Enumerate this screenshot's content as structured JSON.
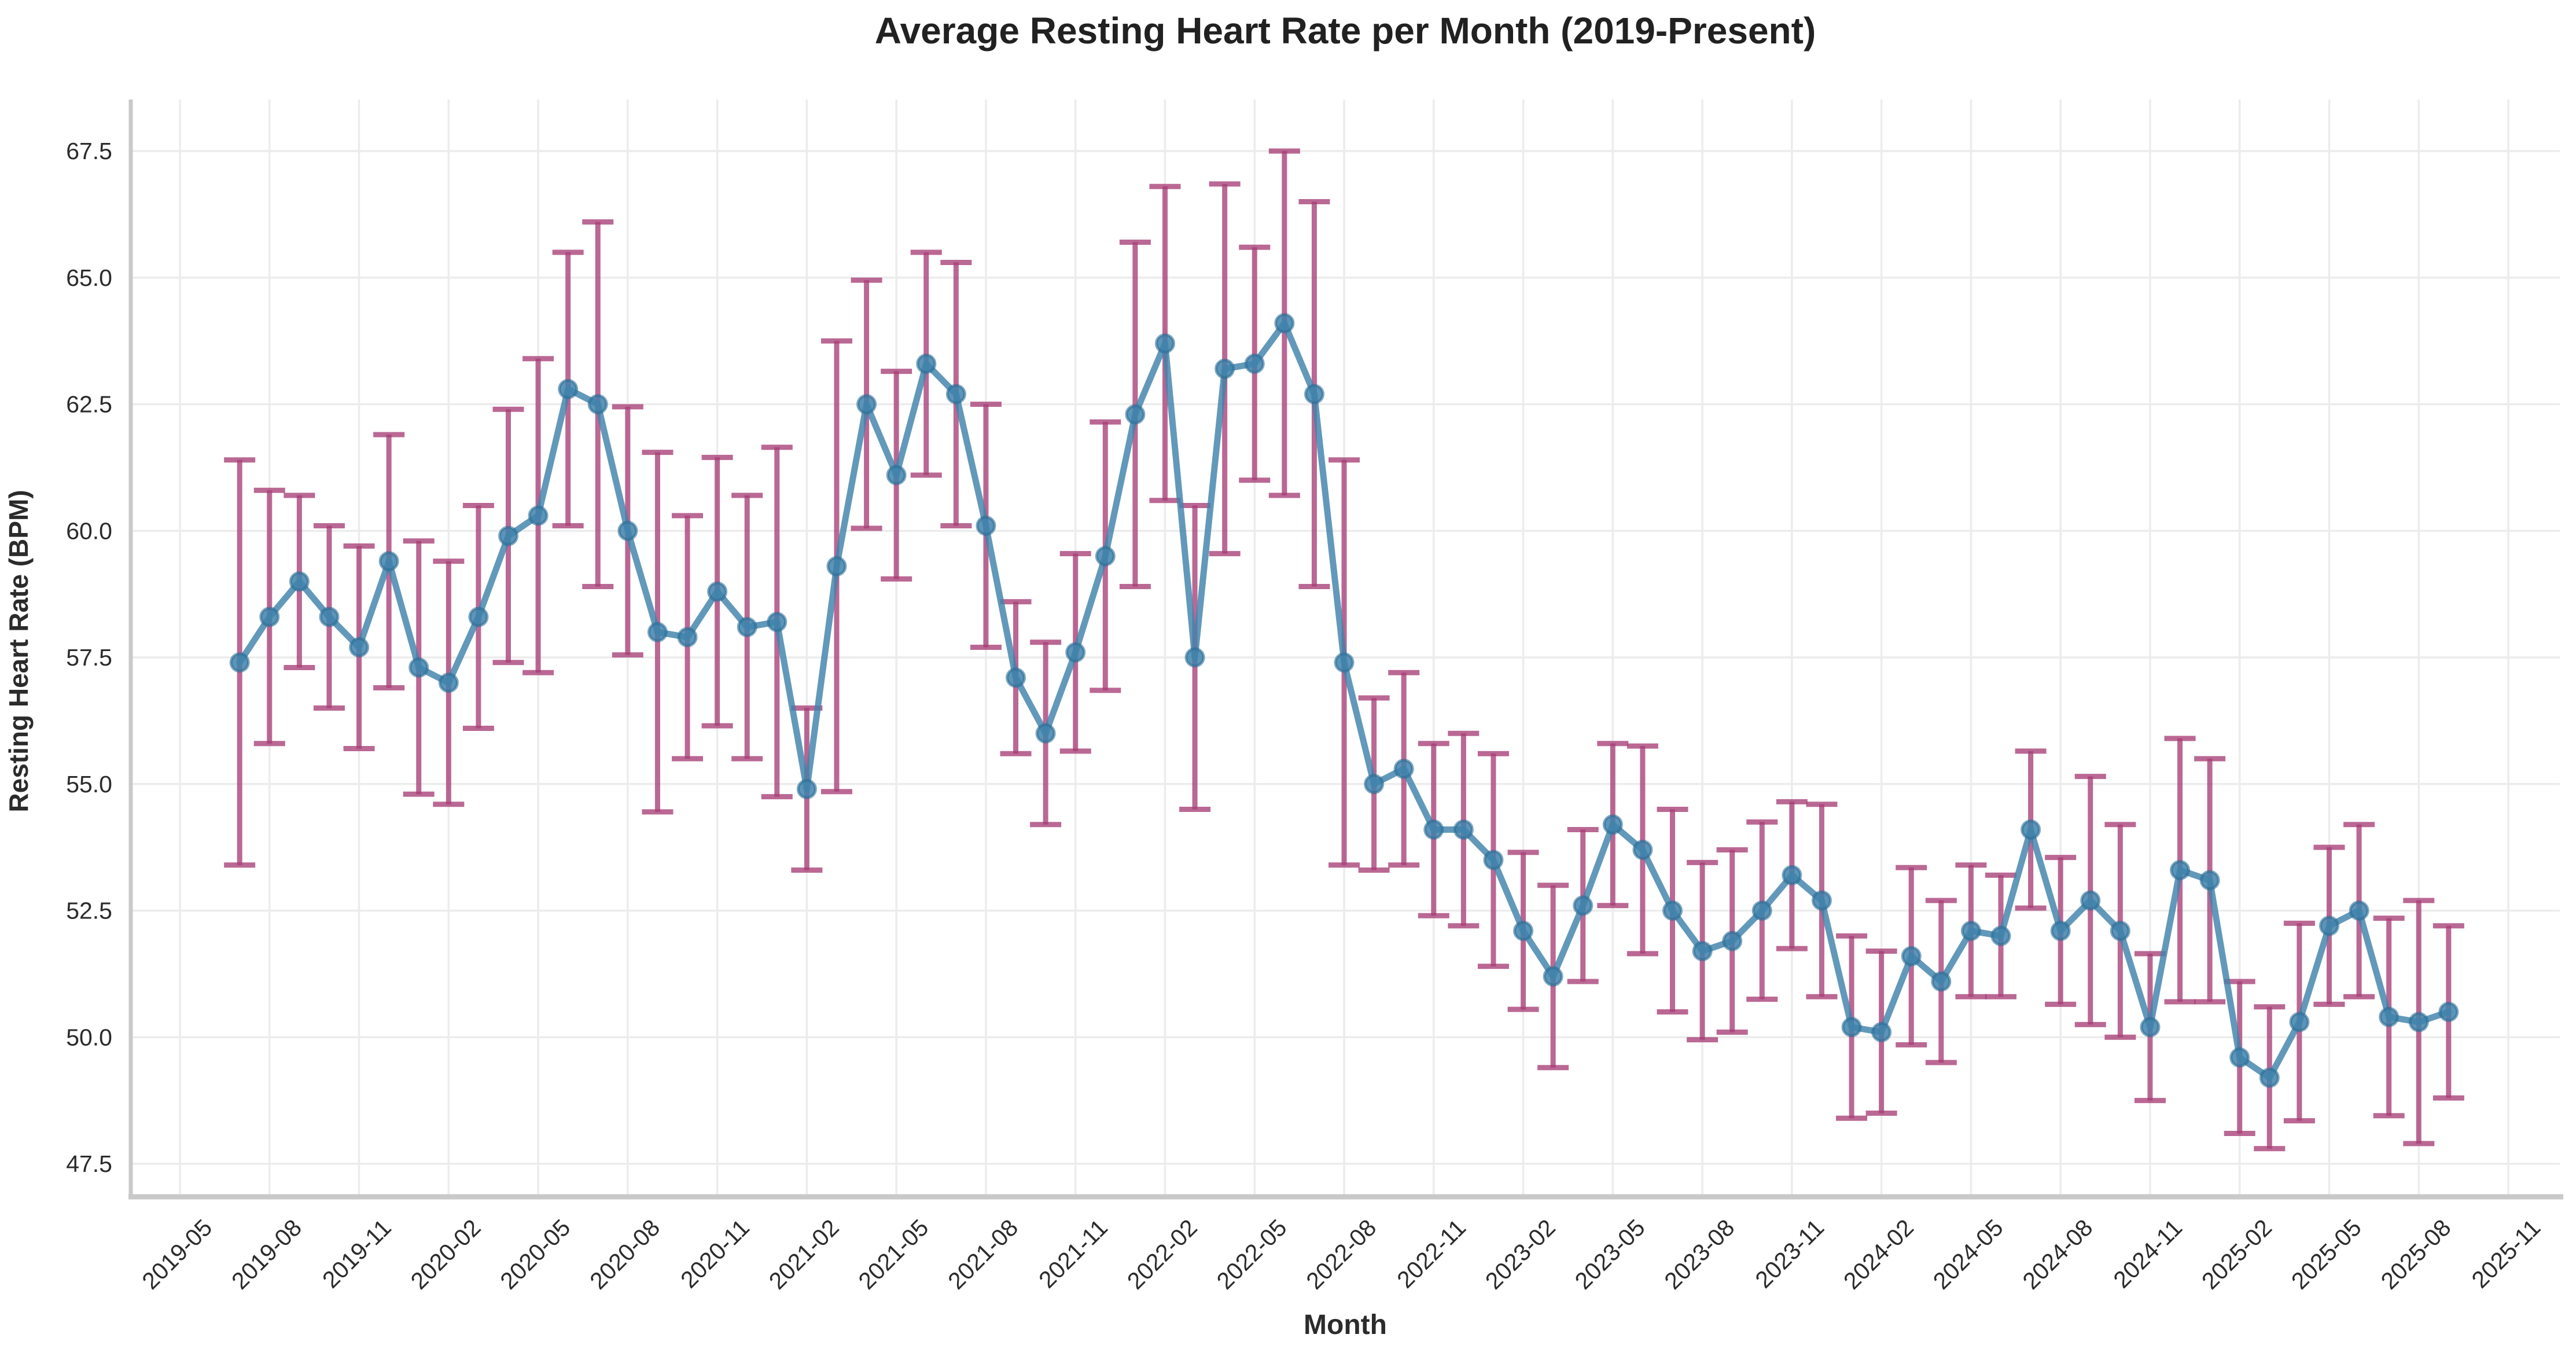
{
  "title": "Average Resting Heart Rate per Month (2019-Present)",
  "axes": {
    "x_label": "Month",
    "y_label": "Resting Heart Rate (BPM)"
  },
  "chart_data": {
    "type": "line",
    "title": "Average Resting Heart Rate per Month (2019-Present)",
    "xlabel": "Month",
    "ylabel": "Resting Heart Rate (BPM)",
    "grid": true,
    "legend": "none",
    "ylim": [
      46.85,
      68.55
    ],
    "y_ticks": [
      47.5,
      50.0,
      52.5,
      55.0,
      57.5,
      60.0,
      62.5,
      65.0,
      67.5
    ],
    "y_tick_labels": [
      "47.5",
      "50.0",
      "52.5",
      "55.0",
      "57.5",
      "60.0",
      "62.5",
      "65.0",
      "67.5"
    ],
    "x_tick_labels": [
      "2019-05",
      "2019-08",
      "2019-11",
      "2020-02",
      "2020-05",
      "2020-08",
      "2020-11",
      "2021-02",
      "2021-05",
      "2021-08",
      "2021-11",
      "2022-02",
      "2022-05",
      "2022-08",
      "2022-11",
      "2023-02",
      "2023-05",
      "2023-08",
      "2023-11",
      "2024-02",
      "2024-05",
      "2024-08",
      "2024-11",
      "2025-02",
      "2025-05",
      "2025-08",
      "2025-11"
    ],
    "x": [
      "2019-07",
      "2019-08",
      "2019-09",
      "2019-10",
      "2019-11",
      "2019-12",
      "2020-01",
      "2020-02",
      "2020-03",
      "2020-04",
      "2020-05",
      "2020-06",
      "2020-07",
      "2020-08",
      "2020-09",
      "2020-10",
      "2020-11",
      "2020-12",
      "2021-01",
      "2021-02",
      "2021-03",
      "2021-04",
      "2021-05",
      "2021-06",
      "2021-07",
      "2021-08",
      "2021-09",
      "2021-10",
      "2021-11",
      "2021-12",
      "2022-01",
      "2022-02",
      "2022-03",
      "2022-04",
      "2022-05",
      "2022-06",
      "2022-07",
      "2022-08",
      "2022-09",
      "2022-10",
      "2022-11",
      "2022-12",
      "2023-01",
      "2023-02",
      "2023-03",
      "2023-04",
      "2023-05",
      "2023-06",
      "2023-07",
      "2023-08",
      "2023-09",
      "2023-10",
      "2023-11",
      "2023-12",
      "2024-01",
      "2024-02",
      "2024-03",
      "2024-04",
      "2024-05",
      "2024-06",
      "2024-07",
      "2024-08",
      "2024-09",
      "2024-10",
      "2024-11",
      "2024-12",
      "2025-01",
      "2025-02",
      "2025-03",
      "2025-04",
      "2025-05",
      "2025-06",
      "2025-07",
      "2025-08",
      "2025-09"
    ],
    "series": [
      {
        "name": "Average resting heart rate",
        "values": [
          57.4,
          58.3,
          59.0,
          58.3,
          57.7,
          59.4,
          57.3,
          57.0,
          58.3,
          59.9,
          60.3,
          62.8,
          62.5,
          60.0,
          58.0,
          57.9,
          58.8,
          58.1,
          58.2,
          54.9,
          59.3,
          62.5,
          61.1,
          63.3,
          62.7,
          60.1,
          57.1,
          56.0,
          57.6,
          59.5,
          62.3,
          63.7,
          57.5,
          63.2,
          63.3,
          64.1,
          62.7,
          57.4,
          55.0,
          55.3,
          54.1,
          54.1,
          53.5,
          52.1,
          51.2,
          52.6,
          54.2,
          53.7,
          52.5,
          51.7,
          51.9,
          52.5,
          53.2,
          52.7,
          50.2,
          50.1,
          51.6,
          51.1,
          52.1,
          52.0,
          54.1,
          52.1,
          52.7,
          52.1,
          50.2,
          53.3,
          53.1,
          49.6,
          49.2,
          50.3,
          52.2,
          52.5,
          50.4,
          50.3,
          50.5
        ],
        "errors": [
          4.0,
          2.5,
          1.7,
          1.8,
          2.0,
          2.5,
          2.5,
          2.4,
          2.2,
          2.5,
          3.1,
          2.7,
          3.6,
          2.45,
          3.55,
          2.4,
          2.65,
          2.6,
          3.45,
          1.6,
          4.45,
          2.45,
          2.05,
          2.2,
          2.6,
          2.4,
          1.5,
          1.8,
          1.95,
          2.65,
          3.4,
          3.1,
          3.0,
          3.65,
          2.3,
          3.4,
          3.8,
          4.0,
          1.7,
          1.9,
          1.7,
          1.9,
          2.1,
          1.55,
          1.8,
          1.5,
          1.6,
          2.05,
          2.0,
          1.75,
          1.8,
          1.75,
          1.45,
          1.9,
          1.8,
          1.6,
          1.75,
          1.6,
          1.3,
          1.2,
          1.55,
          1.45,
          2.45,
          2.1,
          1.45,
          2.6,
          2.4,
          1.5,
          1.4,
          1.95,
          1.55,
          1.7,
          1.95,
          2.4,
          1.7
        ]
      }
    ],
    "colors": {
      "line": "#3f82ab",
      "marker_fill": "#3f82ab",
      "marker_edge": "#2d6e95",
      "error_bar": "#a63d76",
      "gridline": "#ececec",
      "spine": "#c9c9c9",
      "tick_text": "#2b2b2b",
      "background": "#ffffff"
    }
  }
}
